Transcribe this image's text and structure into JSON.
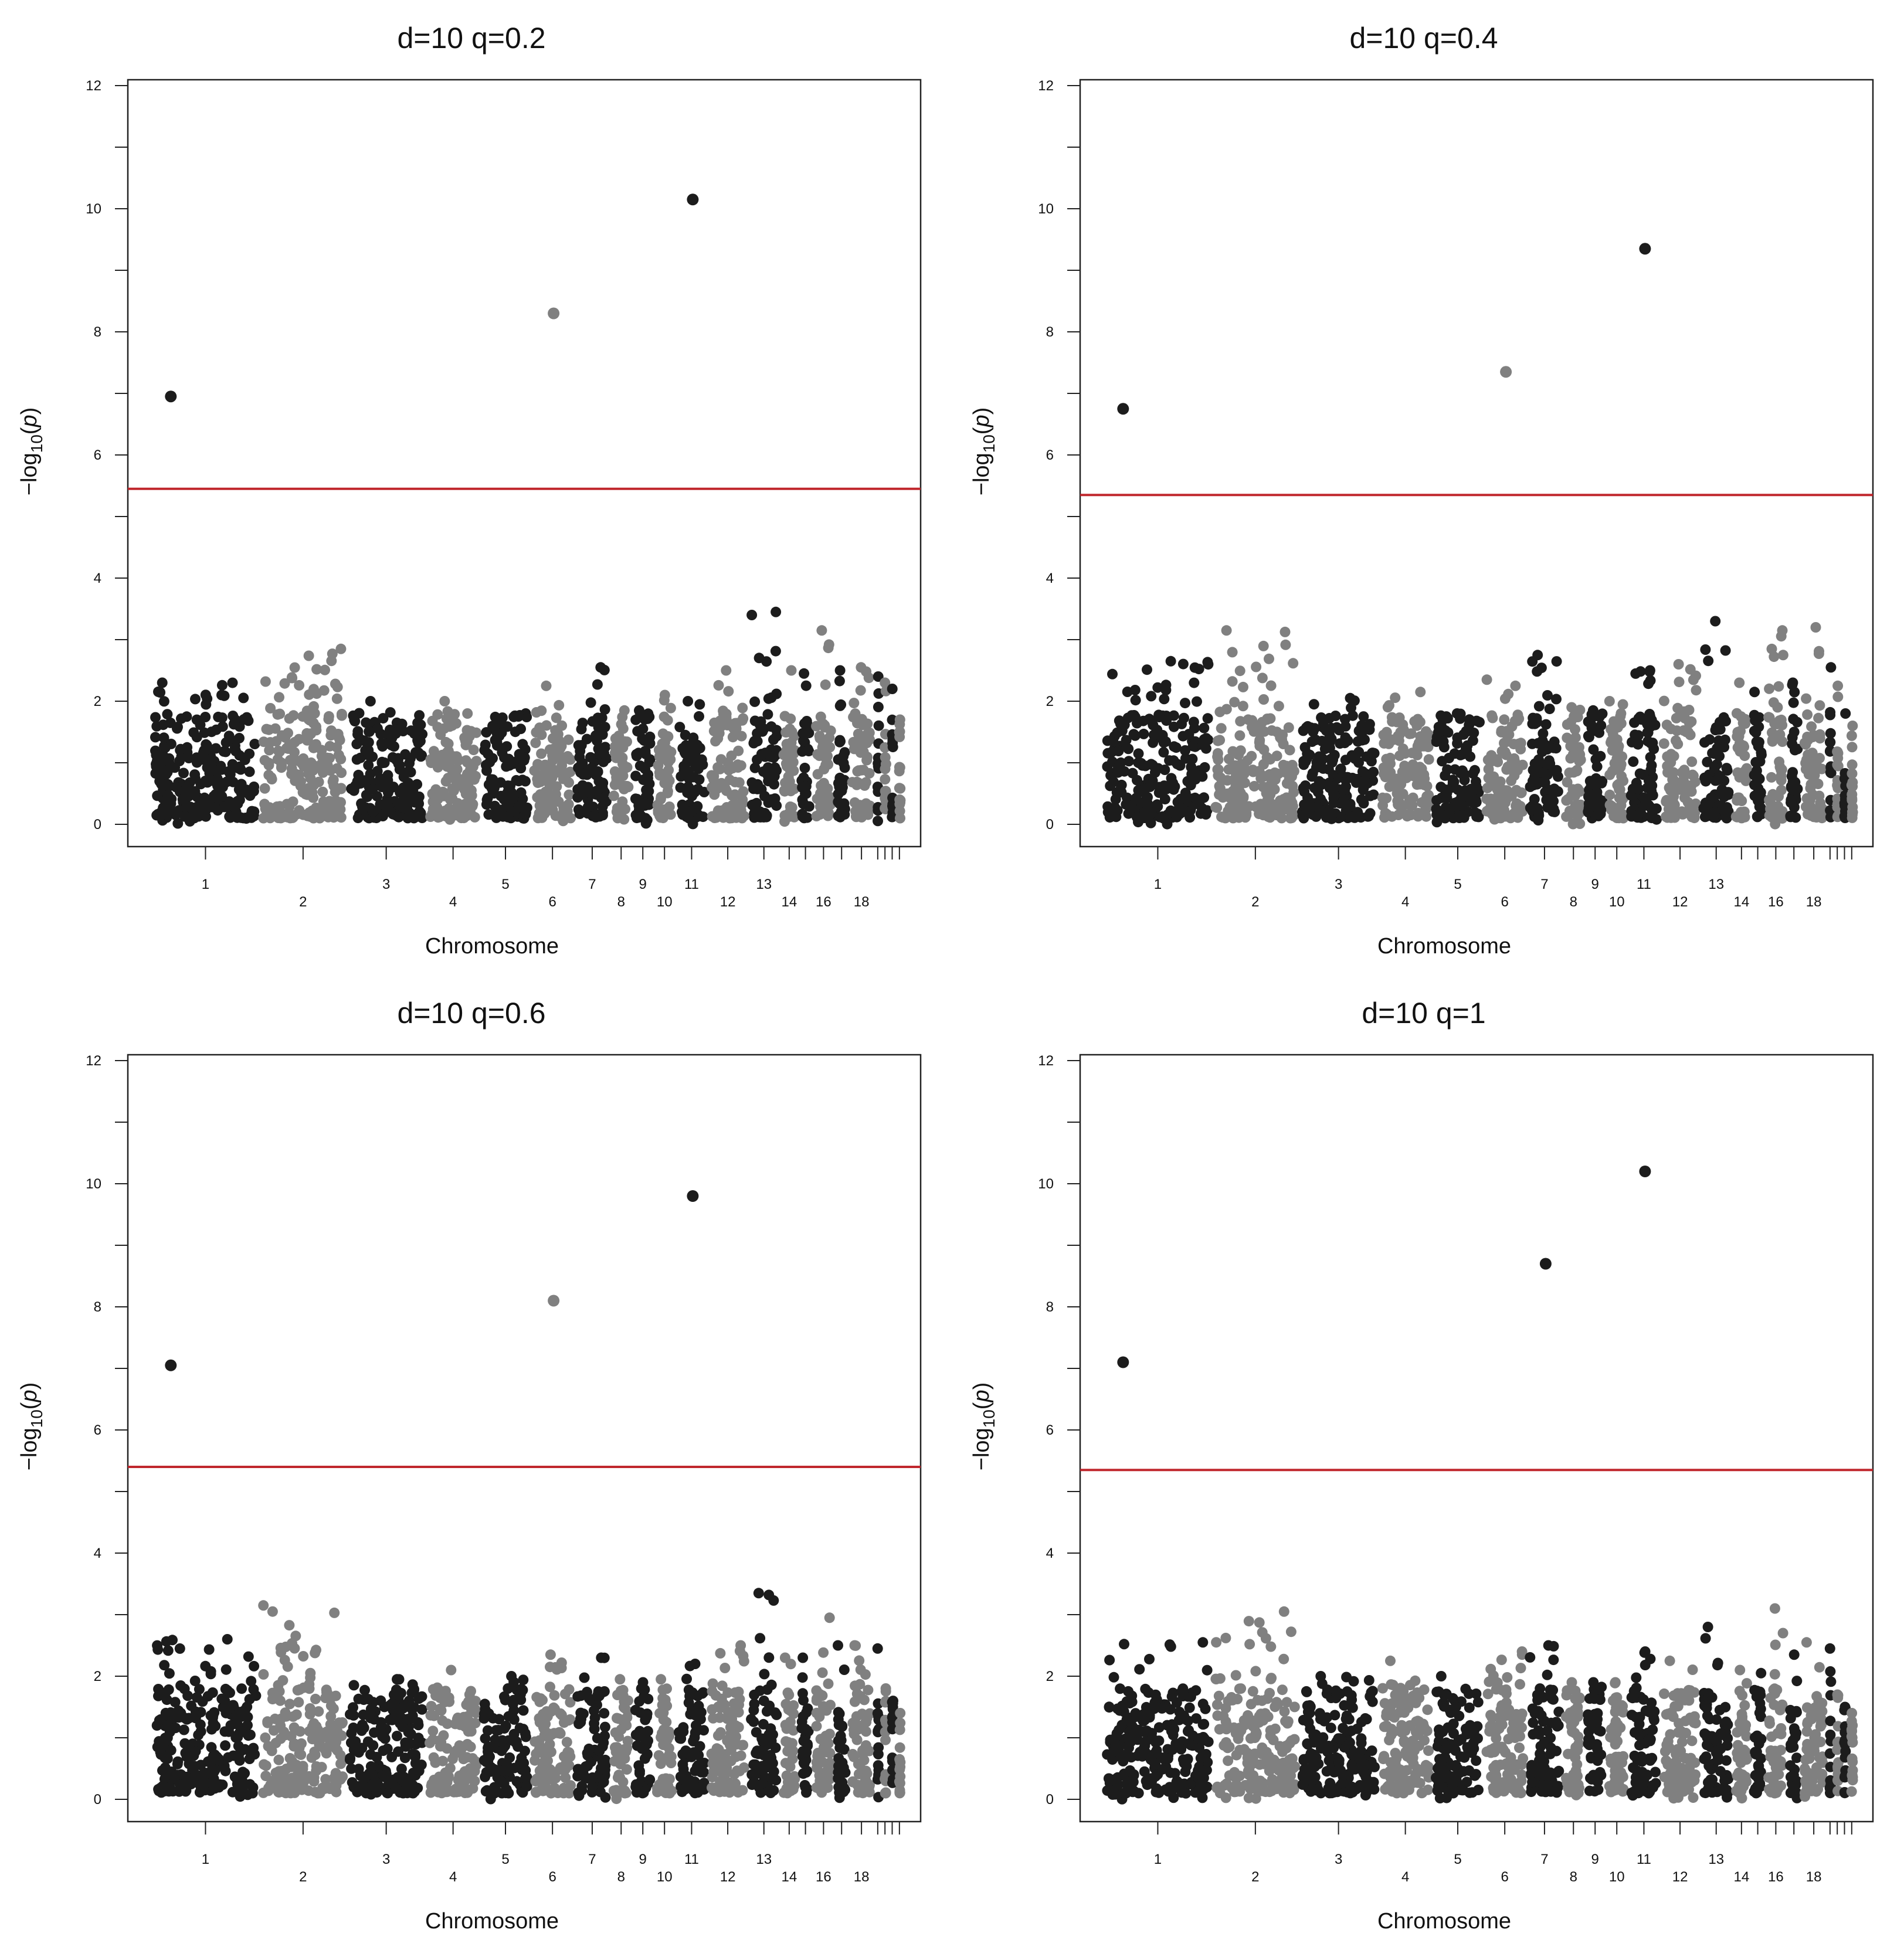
{
  "chart_data": [
    {
      "type": "scatter",
      "title": "d=10 q=0.2",
      "xlabel": "Chromosome",
      "ylabel": "-log10(p)",
      "ylim": [
        0,
        12
      ],
      "yticks": [
        "0",
        "2",
        "4",
        "6",
        "8",
        "10",
        "12"
      ],
      "threshold": 5.45,
      "top_points": [
        {
          "chromosome": "1",
          "value": 6.95
        },
        {
          "chromosome": "6",
          "value": 8.3
        },
        {
          "chromosome": "11",
          "value": 10.15
        }
      ],
      "chromosome_max": [
        2.3,
        2.85,
        2.0,
        2.0,
        1.8,
        2.25,
        2.55,
        1.85,
        1.85,
        2.1,
        2.0,
        2.5,
        3.45,
        2.5,
        2.45,
        3.15,
        2.5,
        2.55,
        2.4,
        2.3,
        2.2,
        1.7
      ]
    },
    {
      "type": "scatter",
      "title": "d=10 q=0.4",
      "xlabel": "Chromosome",
      "ylabel": "-log10(p)",
      "ylim": [
        0,
        12
      ],
      "yticks": [
        "0",
        "2",
        "4",
        "6",
        "8",
        "10",
        "12"
      ],
      "threshold": 5.35,
      "top_points": [
        {
          "chromosome": "1",
          "value": 6.75
        },
        {
          "chromosome": "6",
          "value": 7.35
        },
        {
          "chromosome": "11",
          "value": 9.35
        }
      ],
      "chromosome_max": [
        2.65,
        3.15,
        2.05,
        2.15,
        1.8,
        2.35,
        2.75,
        1.9,
        1.85,
        2.0,
        2.5,
        2.6,
        3.3,
        2.3,
        2.15,
        3.15,
        2.3,
        3.2,
        2.55,
        2.25,
        1.8,
        1.6
      ]
    },
    {
      "type": "scatter",
      "title": "d=10 q=0.6",
      "xlabel": "Chromosome",
      "ylabel": "-log10(p)",
      "ylim": [
        0,
        12
      ],
      "yticks": [
        "0",
        "2",
        "4",
        "6",
        "8",
        "10",
        "12"
      ],
      "threshold": 5.4,
      "top_points": [
        {
          "chromosome": "1",
          "value": 7.05
        },
        {
          "chromosome": "6",
          "value": 8.1
        },
        {
          "chromosome": "11",
          "value": 9.8
        }
      ],
      "chromosome_max": [
        2.6,
        3.15,
        1.95,
        2.1,
        2.0,
        2.35,
        2.3,
        1.95,
        1.9,
        1.95,
        2.2,
        2.5,
        3.35,
        2.3,
        2.3,
        2.95,
        2.5,
        2.5,
        2.45,
        1.8,
        1.5,
        1.4
      ]
    },
    {
      "type": "scatter",
      "title": "d=10 q=1",
      "xlabel": "Chromosome",
      "ylabel": "-log10(p)",
      "ylim": [
        0,
        12
      ],
      "yticks": [
        "0",
        "2",
        "4",
        "6",
        "8",
        "10",
        "12"
      ],
      "threshold": 5.35,
      "top_points": [
        {
          "chromosome": "1",
          "value": 7.1
        },
        {
          "chromosome": "7",
          "value": 8.7
        },
        {
          "chromosome": "11",
          "value": 10.2
        }
      ],
      "chromosome_max": [
        2.55,
        3.05,
        2.0,
        2.25,
        2.0,
        2.4,
        2.5,
        1.9,
        1.9,
        1.9,
        2.4,
        2.25,
        2.8,
        2.1,
        2.05,
        3.1,
        2.35,
        2.55,
        2.45,
        1.7,
        1.5,
        1.4
      ]
    }
  ],
  "x_axis": {
    "chromosome_labels": [
      "1",
      "2",
      "3",
      "4",
      "5",
      "6",
      "7",
      "8",
      "9",
      "10",
      "11",
      "12",
      "13",
      "14",
      "16",
      "18"
    ],
    "chromosome_count": 22
  },
  "colors": {
    "dark_points": "#1c1c1c",
    "light_points": "#808080",
    "threshold_line": "#c0272d",
    "axis": "#222222"
  }
}
